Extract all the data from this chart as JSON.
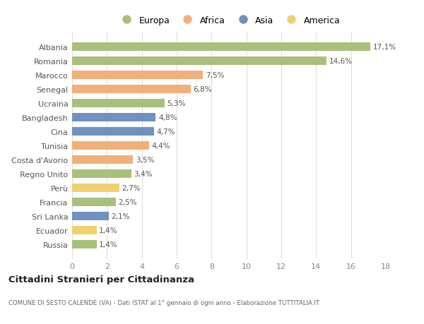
{
  "countries": [
    "Albania",
    "Romania",
    "Marocco",
    "Senegal",
    "Ucraina",
    "Bangladesh",
    "Cina",
    "Tunisia",
    "Costa d'Avorio",
    "Regno Unito",
    "Perù",
    "Francia",
    "Sri Lanka",
    "Ecuador",
    "Russia"
  ],
  "values": [
    17.1,
    14.6,
    7.5,
    6.8,
    5.3,
    4.8,
    4.7,
    4.4,
    3.5,
    3.4,
    2.7,
    2.5,
    2.1,
    1.4,
    1.4
  ],
  "labels": [
    "17,1%",
    "14,6%",
    "7,5%",
    "6,8%",
    "5,3%",
    "4,8%",
    "4,7%",
    "4,4%",
    "3,5%",
    "3,4%",
    "2,7%",
    "2,5%",
    "2,1%",
    "1,4%",
    "1,4%"
  ],
  "categories": [
    "Europa",
    "Europa",
    "Africa",
    "Africa",
    "Europa",
    "Asia",
    "Asia",
    "Africa",
    "Africa",
    "Europa",
    "America",
    "Europa",
    "Asia",
    "America",
    "Europa"
  ],
  "colors": {
    "Europa": "#a8c07a",
    "Africa": "#f0b07a",
    "Asia": "#7090c0",
    "America": "#f0d070"
  },
  "xlim": [
    0,
    18
  ],
  "xticks": [
    0,
    2,
    4,
    6,
    8,
    10,
    12,
    14,
    16,
    18
  ],
  "title": "Cittadini Stranieri per Cittadinanza",
  "subtitle": "COMUNE DI SESTO CALENDE (VA) - Dati ISTAT al 1° gennaio di ogni anno - Elaborazione TUTTITALIA.IT",
  "bg_color": "#ffffff",
  "grid_color": "#dddddd",
  "bar_height": 0.6,
  "legend_order": [
    "Europa",
    "Africa",
    "Asia",
    "America"
  ]
}
